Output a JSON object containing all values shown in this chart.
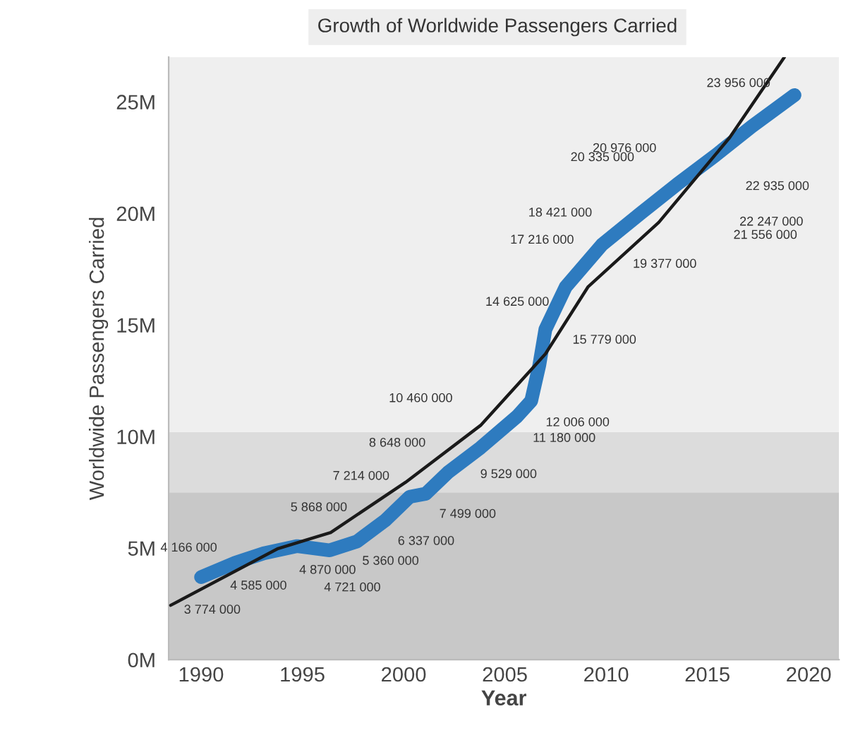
{
  "chart_data": {
    "type": "line",
    "title": "Growth of Worldwide Passengers Carried",
    "xlabel": "Year",
    "ylabel": "Worldwide Passengers Carried",
    "xlim": [
      1988.4,
      2021.5
    ],
    "xticks": [
      1990,
      1995,
      2000,
      2005,
      2010,
      2015,
      2020
    ],
    "ylim": [
      0,
      27000000
    ],
    "yticks": [
      {
        "value": 0,
        "label": "0M"
      },
      {
        "value": 5000000,
        "label": "5M"
      },
      {
        "value": 10000000,
        "label": "10M"
      },
      {
        "value": 15000000,
        "label": "15M"
      },
      {
        "value": 20000000,
        "label": "20M"
      },
      {
        "value": 25000000,
        "label": "25M"
      }
    ],
    "grid": false,
    "legend": false,
    "bands": [
      {
        "axis": "y",
        "from": 0,
        "to": 7500000,
        "color": "#c8c8c8"
      },
      {
        "axis": "y",
        "from": 7500000,
        "to": 10200000,
        "color": "#dcdcdc"
      },
      {
        "axis": "y",
        "from": 10200000,
        "to": 27000000,
        "color": "#efefef"
      }
    ],
    "series": [
      {
        "color": "#2e7bbf",
        "x": [
          1990.0,
          1991.7,
          1993.1,
          1994.75,
          1996.35,
          1997.7,
          1999.1,
          2000.3,
          2001.1,
          2002.2,
          2003.8,
          2005.6,
          2006.3,
          2006.7,
          2007.0,
          2008.0,
          2009.8,
          2011.7,
          2013.5,
          2015.4,
          2017.2,
          2019.3
        ],
        "values": [
          3700000,
          4350000,
          4770000,
          5090000,
          4900000,
          5300000,
          6250000,
          7300000,
          7440000,
          8400000,
          9500000,
          10900000,
          11600000,
          13200000,
          14800000,
          16700000,
          18600000,
          20000000,
          21300000,
          22600000,
          23900000,
          25300000
        ]
      },
      {
        "type": "line",
        "color": "#1a1a1a",
        "x": [
          1988.5,
          1993.8,
          1996.4,
          2000.1,
          2003.8,
          2007.0,
          2009.1,
          2012.6,
          2016.1,
          2018.8
        ],
        "values": [
          2440000,
          4980000,
          5700000,
          7950000,
          10500000,
          13700000,
          16700000,
          19600000,
          23400000,
          27000000
        ]
      }
    ],
    "annotations": [
      "3 774 000",
      "4 166 000",
      "4 585 000",
      "4 870 000",
      "4 721 000",
      "5 360 000",
      "6 337 000",
      "5 868 000",
      "7 499 000",
      "7 214 000",
      "8 648 000",
      "9 529 000",
      "10 460 000",
      "11 180 000",
      "12 006 000",
      "14 625 000",
      "15 779 000",
      "17 216 000",
      "18 421 000",
      "19 377 000",
      "20 335 000",
      "20 976 000",
      "21 556 000",
      "22 247 000",
      "22 935 000",
      "23 956 000"
    ]
  }
}
